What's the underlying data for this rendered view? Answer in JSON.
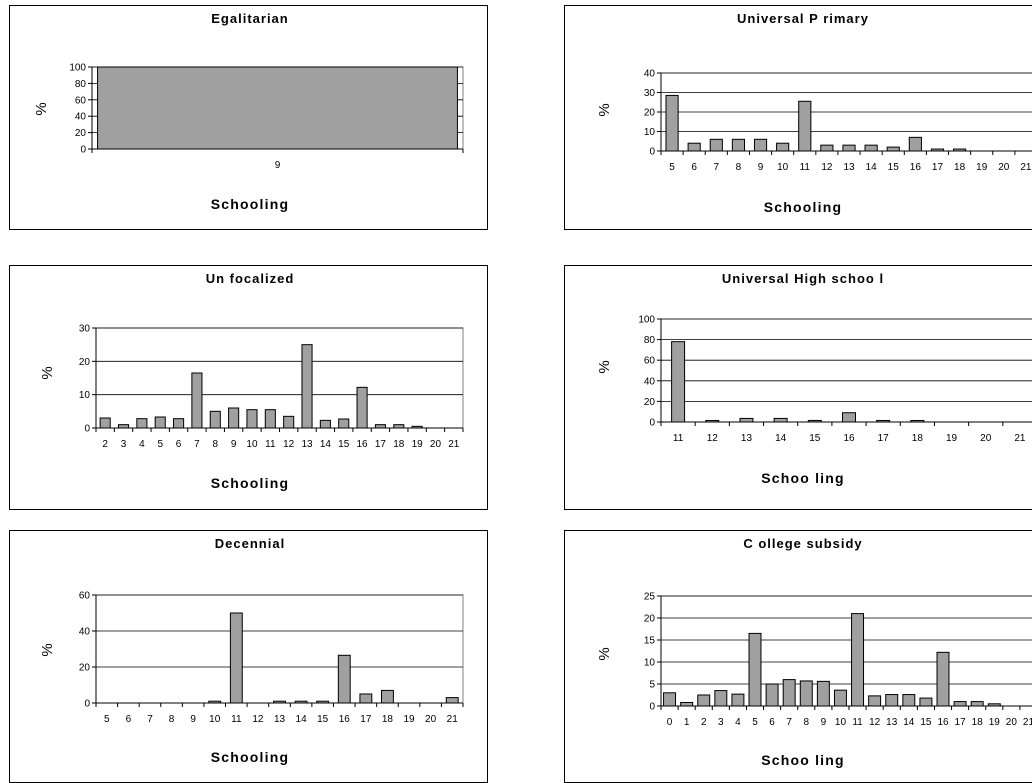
{
  "colors": {
    "bar": "#a0a0a0",
    "grid": "#000000",
    "frame": "#808080"
  },
  "chart_data": [
    {
      "type": "bar",
      "title": "Egalitarian",
      "xlabel": "Schooling",
      "ylabel": "%",
      "categories": [
        "9"
      ],
      "values": [
        100
      ],
      "ylim": [
        0,
        100
      ],
      "yticks": [
        "0",
        "20",
        "40",
        "60",
        "80",
        "100"
      ],
      "grid": true,
      "legend": "none"
    },
    {
      "type": "bar",
      "title": "Universal P rimary",
      "xlabel": "Schooling",
      "ylabel": "%",
      "categories": [
        "5",
        "6",
        "7",
        "8",
        "9",
        "10",
        "11",
        "12",
        "13",
        "14",
        "15",
        "16",
        "17",
        "18",
        "19",
        "20",
        "21"
      ],
      "values": [
        28.5,
        4,
        6,
        6,
        6,
        4,
        25.5,
        3,
        3,
        3,
        2,
        7,
        1,
        1,
        0,
        0,
        0
      ],
      "ylim": [
        0,
        40
      ],
      "yticks": [
        "0",
        "10",
        "20",
        "30",
        "40"
      ],
      "grid": true,
      "legend": "none"
    },
    {
      "type": "bar",
      "title": "Un focalized",
      "xlabel": "Schooling",
      "ylabel": "%",
      "categories": [
        "2",
        "3",
        "4",
        "5",
        "6",
        "7",
        "8",
        "9",
        "10",
        "11",
        "12",
        "13",
        "14",
        "15",
        "16",
        "17",
        "18",
        "19",
        "20",
        "21"
      ],
      "values": [
        3,
        1,
        2.8,
        3.3,
        2.8,
        16.5,
        5,
        6,
        5.5,
        5.5,
        3.5,
        25,
        2.3,
        2.7,
        12.2,
        1,
        1,
        0.5,
        0,
        0
      ],
      "ylim": [
        0,
        30
      ],
      "yticks": [
        "0",
        "10",
        "20",
        "30"
      ],
      "grid": true,
      "legend": "none"
    },
    {
      "type": "bar",
      "title": "Universal High schoo l",
      "xlabel": "Schoo ling",
      "ylabel": "%",
      "categories": [
        "11",
        "12",
        "13",
        "14",
        "15",
        "16",
        "17",
        "18",
        "19",
        "20",
        "21"
      ],
      "values": [
        78,
        1.5,
        3.5,
        3.5,
        1.5,
        9,
        1.5,
        1.5,
        0,
        0,
        0
      ],
      "ylim": [
        0,
        100
      ],
      "yticks": [
        "0",
        "20",
        "40",
        "60",
        "80",
        "100"
      ],
      "grid": true,
      "legend": "none"
    },
    {
      "type": "bar",
      "title": "Decennial",
      "xlabel": "Schooling",
      "ylabel": "%",
      "categories": [
        "5",
        "6",
        "7",
        "8",
        "9",
        "10",
        "11",
        "12",
        "13",
        "14",
        "15",
        "16",
        "17",
        "18",
        "19",
        "20",
        "21"
      ],
      "values": [
        0,
        0,
        0,
        0,
        0,
        1,
        50,
        0,
        1,
        1,
        1,
        26.5,
        5,
        7,
        0,
        0,
        3
      ],
      "ylim": [
        0,
        60
      ],
      "yticks": [
        "0",
        "20",
        "40",
        "60"
      ],
      "grid": true,
      "legend": "none"
    },
    {
      "type": "bar",
      "title": "C ollege subsidy",
      "xlabel": "Schoo ling",
      "ylabel": "%",
      "categories": [
        "0",
        "1",
        "2",
        "3",
        "4",
        "5",
        "6",
        "7",
        "8",
        "9",
        "10",
        "11",
        "12",
        "13",
        "14",
        "15",
        "16",
        "17",
        "18",
        "19",
        "20",
        "21"
      ],
      "values": [
        3,
        0.8,
        2.5,
        3.5,
        2.7,
        16.5,
        5,
        6,
        5.7,
        5.6,
        3.6,
        21,
        2.3,
        2.6,
        2.6,
        1.8,
        12.2,
        1,
        1,
        0.5,
        0,
        0
      ],
      "ylim": [
        0,
        25
      ],
      "yticks": [
        "0",
        "5",
        "10",
        "15",
        "20",
        "25"
      ],
      "grid": true,
      "legend": "none"
    }
  ]
}
